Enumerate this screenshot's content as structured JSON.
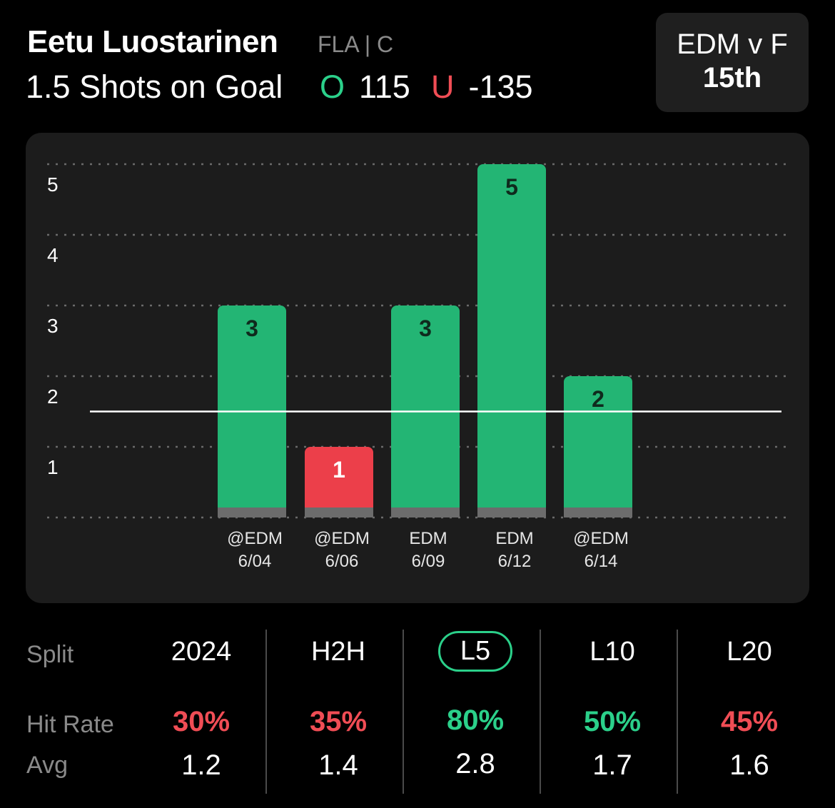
{
  "player": {
    "name": "Eetu Luostarinen",
    "meta": "FLA | C"
  },
  "prop": {
    "line_text": "1.5 Shots on Goal",
    "over_symbol": "O",
    "over_odds": "115",
    "under_symbol": "U",
    "under_odds": "-135"
  },
  "matchup": {
    "teams": "EDM v F",
    "game": "15th"
  },
  "colors": {
    "over": "#23b574",
    "under": "#ec3f4a",
    "accent_green": "#2bd08a",
    "accent_red": "#f04d55"
  },
  "chart_data": {
    "type": "bar",
    "title": "",
    "xlabel": "",
    "ylabel": "",
    "ylim": [
      0,
      5
    ],
    "yticks": [
      1,
      2,
      3,
      4,
      5
    ],
    "line_value": 1.5,
    "categories": [
      {
        "opponent": "@EDM",
        "date": "6/04"
      },
      {
        "opponent": "@EDM",
        "date": "6/06"
      },
      {
        "opponent": "EDM",
        "date": "6/09"
      },
      {
        "opponent": "EDM",
        "date": "6/12"
      },
      {
        "opponent": "@EDM",
        "date": "6/14"
      }
    ],
    "values": [
      3,
      1,
      3,
      5,
      2
    ]
  },
  "splits": {
    "labels": {
      "split": "Split",
      "hit_rate": "Hit Rate",
      "avg": "Avg"
    },
    "columns": [
      {
        "name": "2024",
        "hit_rate": "30%",
        "avg": "1.2",
        "good": false,
        "active": false
      },
      {
        "name": "H2H",
        "hit_rate": "35%",
        "avg": "1.4",
        "good": false,
        "active": false
      },
      {
        "name": "L5",
        "hit_rate": "80%",
        "avg": "2.8",
        "good": true,
        "active": true
      },
      {
        "name": "L10",
        "hit_rate": "50%",
        "avg": "1.7",
        "good": true,
        "active": false
      },
      {
        "name": "L20",
        "hit_rate": "45%",
        "avg": "1.6",
        "good": false,
        "active": false
      }
    ]
  }
}
